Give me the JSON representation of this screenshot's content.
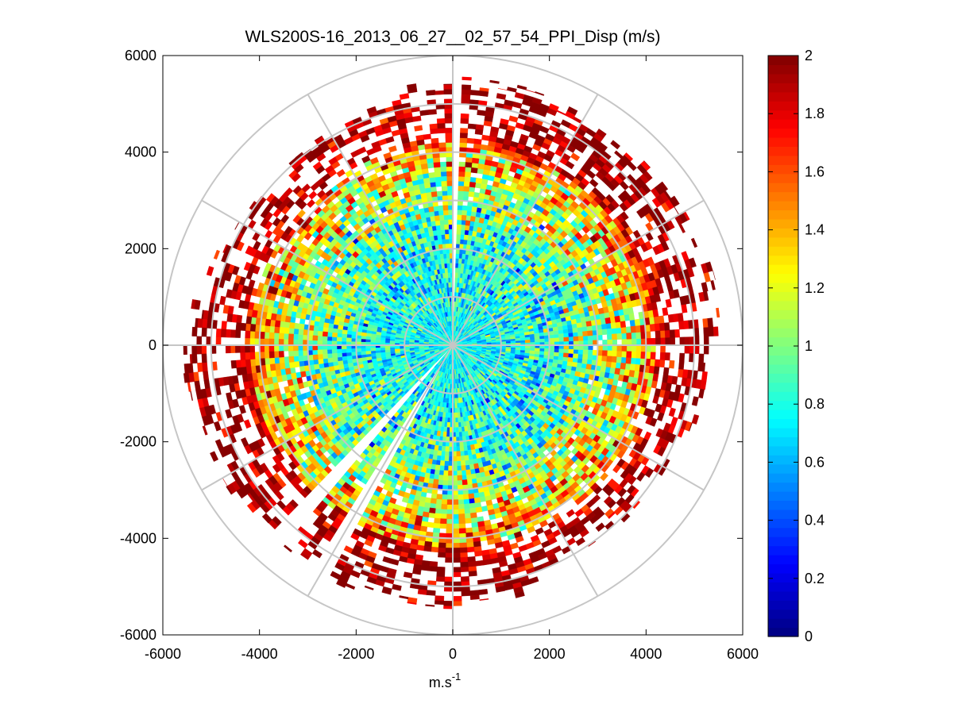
{
  "chart_data": {
    "type": "heatmap",
    "subtype": "polar-ppi",
    "title": "WLS200S-16_2013_06_27__02_57_54_PPI_Disp (m/s)",
    "xlabel": "m.s",
    "xlabel_superscript": "-1",
    "ylabel": "",
    "xlim": [
      -6000,
      6000
    ],
    "ylim": [
      -6000,
      6000
    ],
    "xticks": [
      -6000,
      -4000,
      -2000,
      0,
      2000,
      4000,
      6000
    ],
    "yticks": [
      6000,
      4000,
      2000,
      0,
      -2000,
      -4000,
      -6000
    ],
    "xtick_labels": [
      "-6000",
      "-4000",
      "-2000",
      "0",
      "2000",
      "4000",
      "6000"
    ],
    "ytick_labels": [
      "6000",
      "4000",
      "2000",
      "0",
      "-2000",
      "-4000",
      "-6000"
    ],
    "grid": true,
    "range_rings": [
      1000,
      2000,
      3000,
      4000,
      5000,
      6000
    ],
    "spokes_deg": [
      0,
      30,
      60,
      90,
      120,
      150,
      180,
      210,
      240,
      270,
      300,
      330
    ],
    "max_range": 5300,
    "gate_spacing": 100,
    "ray_count": 180,
    "missing_sectors_deg": [
      {
        "from": 0,
        "to": 2
      },
      {
        "from": 208,
        "to": 213
      },
      {
        "from": 220,
        "to": 224
      }
    ],
    "value_vs_range": [
      {
        "range": 0,
        "mean": 0.7
      },
      {
        "range": 2000,
        "mean": 0.8
      },
      {
        "range": 3000,
        "mean": 1.0
      },
      {
        "range": 4000,
        "mean": 1.4
      },
      {
        "range": 4600,
        "mean": 1.8
      },
      {
        "range": 5300,
        "mean": 2.0
      }
    ],
    "colorbar": {
      "colormap": "jet",
      "min": 0,
      "max": 2,
      "ticks": [
        0,
        0.2,
        0.4,
        0.6,
        0.8,
        1,
        1.2,
        1.4,
        1.6,
        1.8,
        2
      ],
      "tick_labels": [
        "0",
        "0.2",
        "0.4",
        "0.6",
        "0.8",
        "1",
        "1.2",
        "1.4",
        "1.6",
        "1.8",
        "2"
      ]
    }
  }
}
